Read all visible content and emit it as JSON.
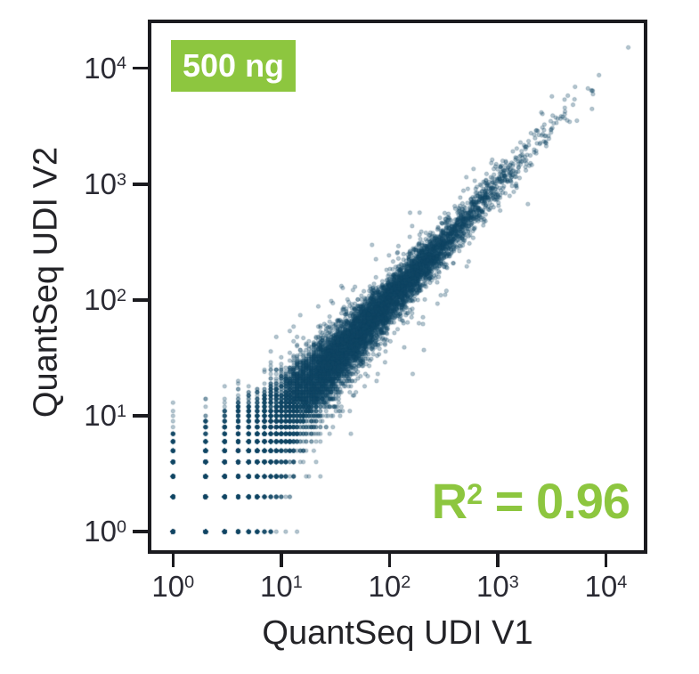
{
  "chart_data": {
    "type": "scatter",
    "xlabel": "QuantSeq UDI V1",
    "ylabel": "QuantSeq UDI V2",
    "x_scale": "log10",
    "y_scale": "log10",
    "tick_base": "10",
    "x_tick_exponents": [
      0,
      1,
      2,
      3,
      4
    ],
    "y_tick_exponents": [
      0,
      1,
      2,
      3,
      4
    ],
    "x_tick_values": [
      1,
      10,
      100,
      1000,
      10000
    ],
    "y_tick_values": [
      1,
      10,
      100,
      1000,
      10000
    ],
    "x_domain_log10": [
      -0.2,
      4.35
    ],
    "y_domain_log10": [
      -0.16,
      4.39
    ],
    "grid": false,
    "legend": false,
    "badge": {
      "label": "500 ng",
      "bg_color": "#8dc63f",
      "text_color": "#ffffff"
    },
    "annotation": {
      "base": "R",
      "exponent": "2",
      "rest": " = 0.96",
      "r_squared": 0.96,
      "color": "#8dc63f"
    },
    "points": {
      "marker": "circle",
      "color": "#0f4464",
      "alpha": 0.3,
      "edge_alpha": 0.42,
      "radius_px": 2.1,
      "description": "Thousands of per-gene read counts from two library preps plotted replicate-vs-replicate; dense band along the y=x diagonal from 1 to ~16000 counts, Poisson funnel widening at low counts, integer-count lattice visible below ~30 counts",
      "generator": {
        "seed": 42,
        "n_genes": 11500,
        "log10_mean": 1.4,
        "log10_sd": 0.75,
        "replicate_log10_dispersion": 0.06,
        "outlier_fraction": 0.035,
        "outlier_log10_sd": 0.28,
        "max_log10_mean": 4.3,
        "noise_model": "poisson"
      }
    }
  },
  "figure": {
    "background": "#ffffff",
    "frame_color": "#1b1b1f",
    "text_color": "#232327"
  }
}
